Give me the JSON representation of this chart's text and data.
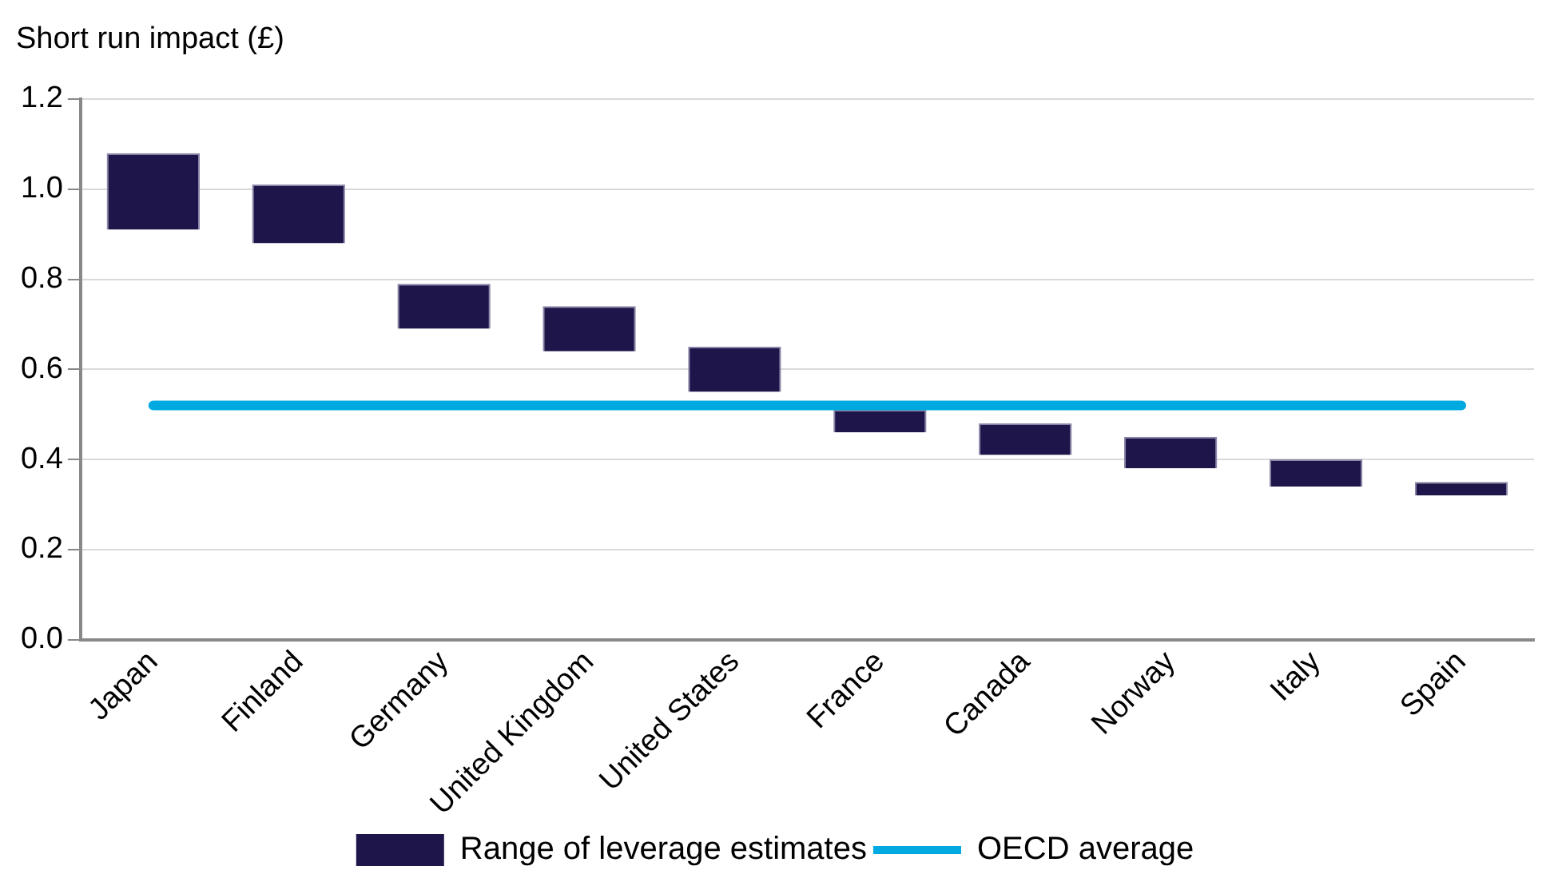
{
  "chart_data": {
    "type": "bar",
    "ylabel": "Short run impact (£)",
    "categories": [
      "Japan",
      "Finland",
      "Germany",
      "United Kingdom",
      "United States",
      "France",
      "Canada",
      "Norway",
      "Italy",
      "Spain"
    ],
    "series": [
      {
        "name": "Range of leverage estimates",
        "color": "#1e154a",
        "base": [
          0.91,
          0.88,
          0.69,
          0.64,
          0.55,
          0.46,
          0.41,
          0.38,
          0.34,
          0.32
        ],
        "values": [
          0.17,
          0.13,
          0.1,
          0.1,
          0.1,
          0.05,
          0.07,
          0.07,
          0.06,
          0.03
        ]
      },
      {
        "name": "OECD average",
        "color": "#00a9e0",
        "type": "line",
        "values": [
          0.52,
          0.52,
          0.52,
          0.52,
          0.52,
          0.52,
          0.52,
          0.52,
          0.52,
          0.52
        ]
      }
    ],
    "ylim": [
      0,
      1.2
    ],
    "yticks": [
      {
        "value": 0,
        "label": "0.0"
      },
      0.2,
      0.4,
      0.6,
      0.8,
      {
        "value": 1,
        "label": "1.0"
      },
      1.2
    ],
    "grid": "y",
    "legend": "bottom",
    "marker": "none"
  }
}
